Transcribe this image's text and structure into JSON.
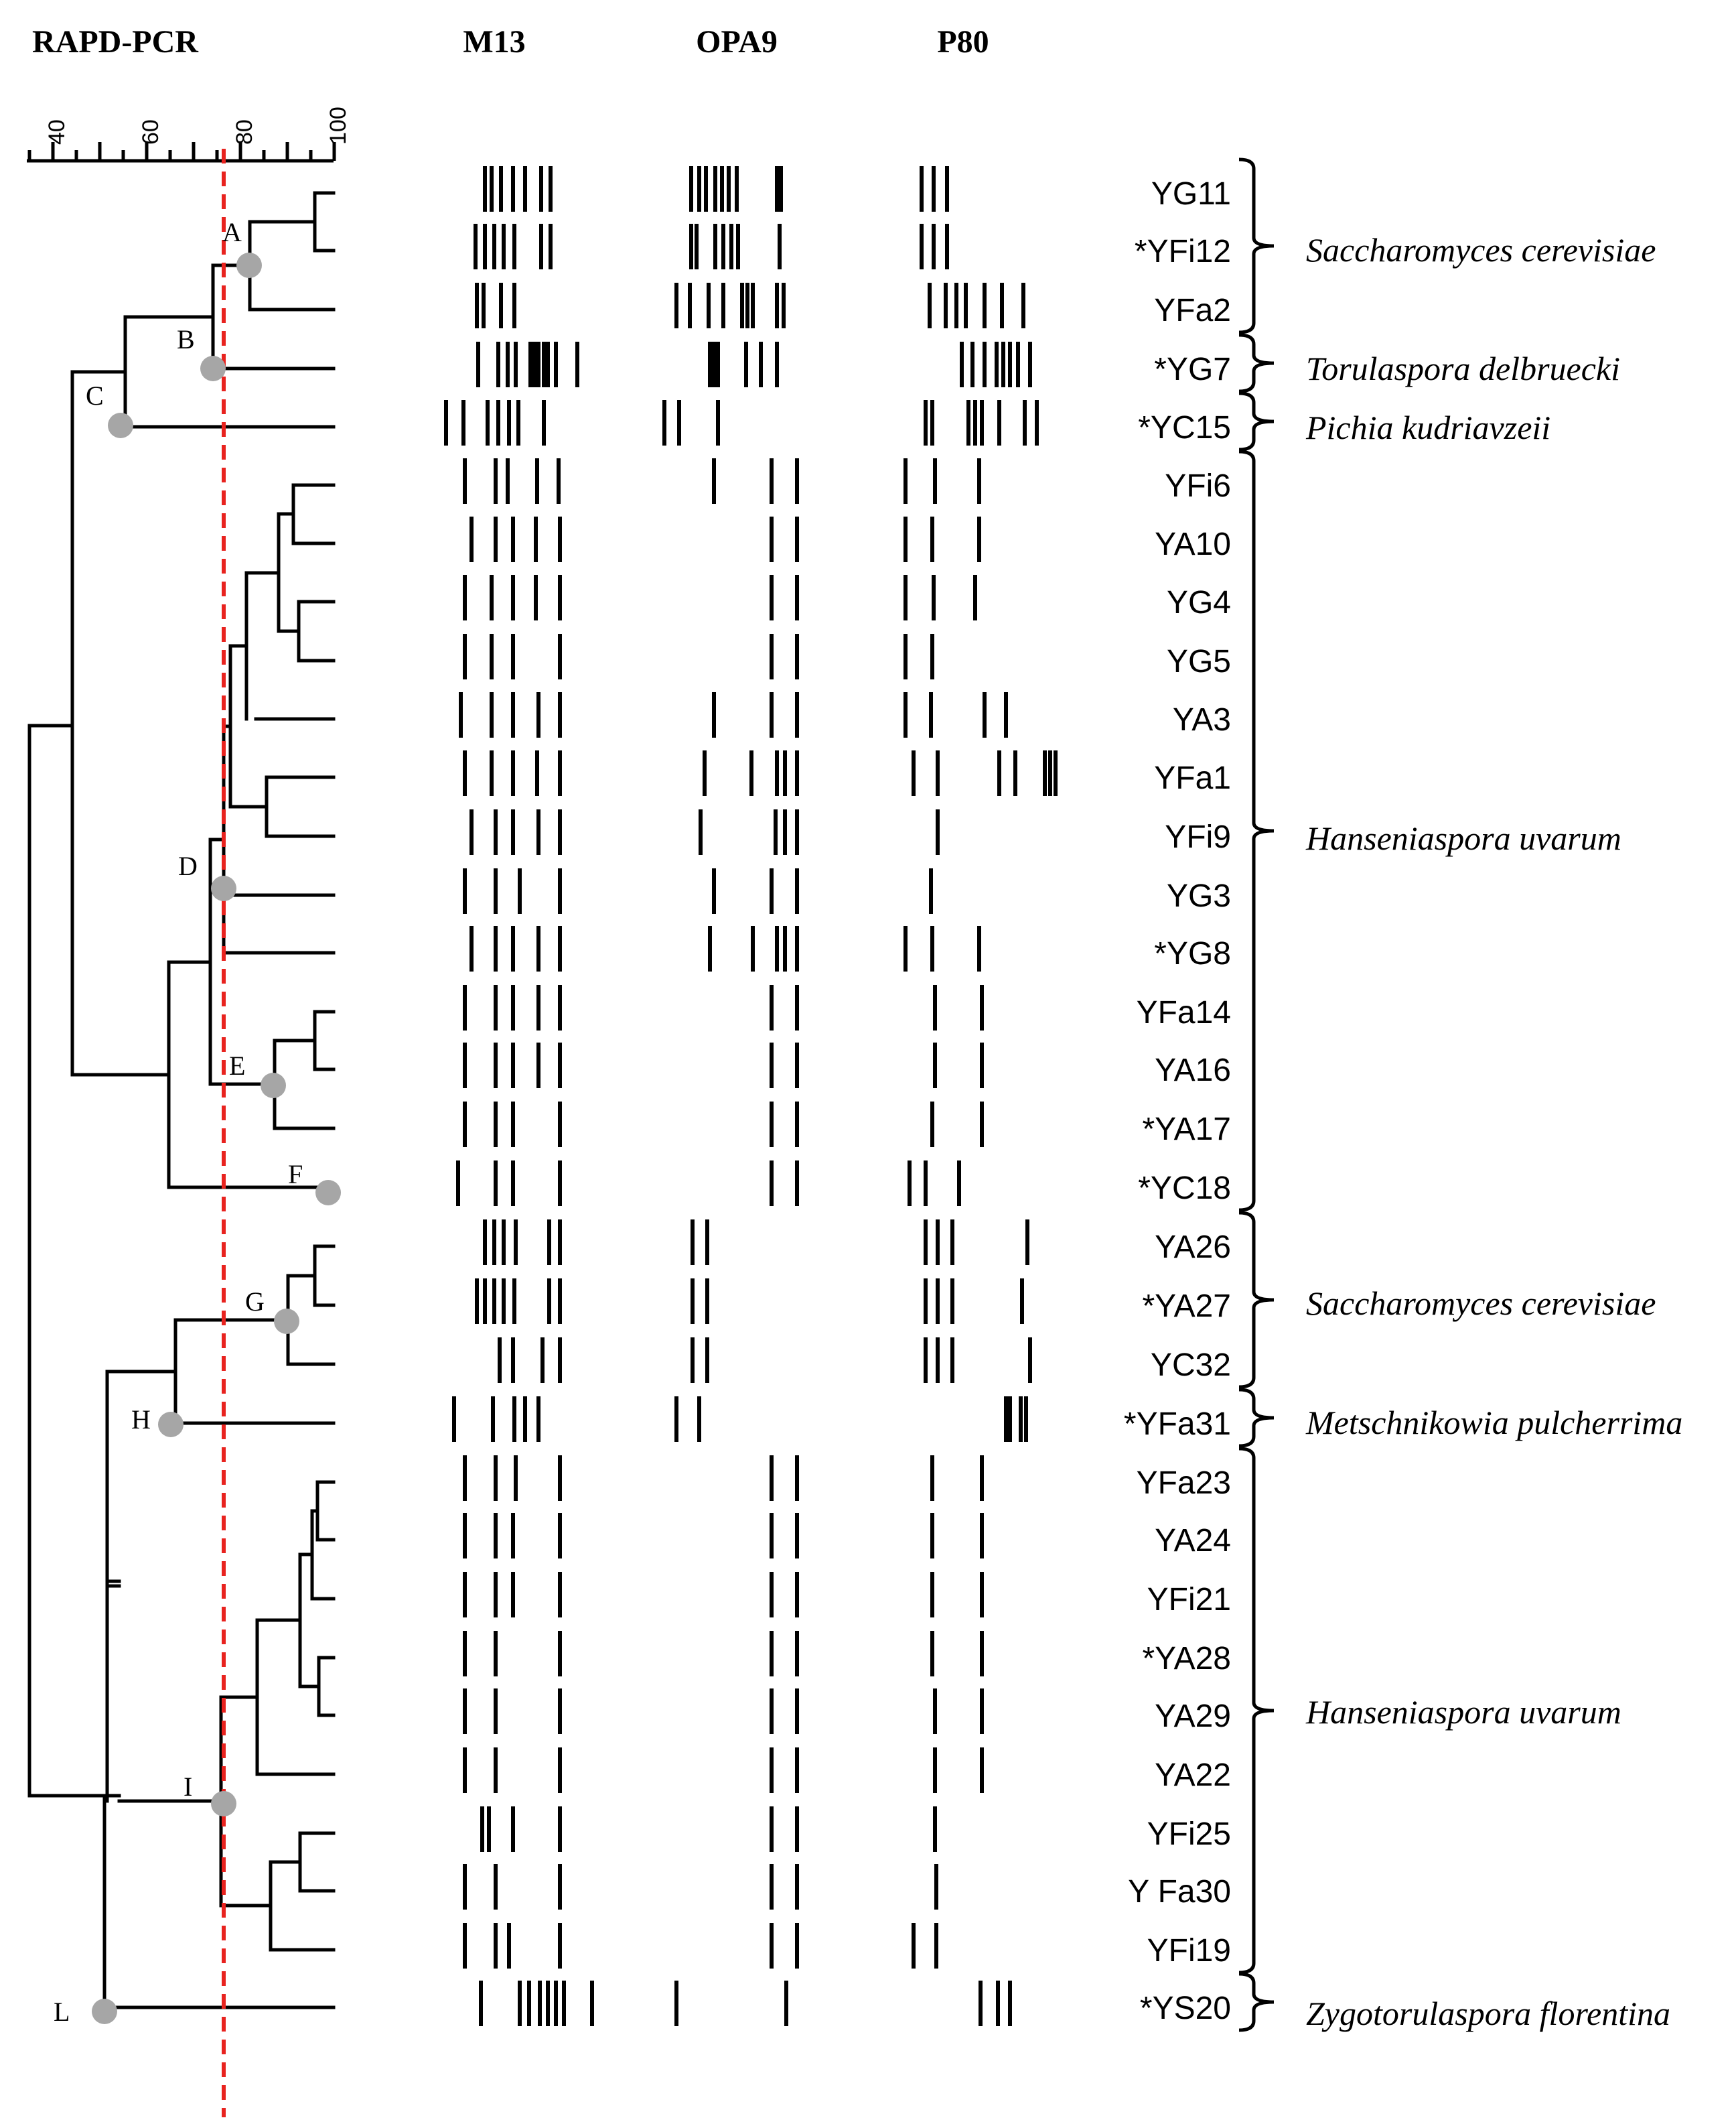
{
  "header": {
    "method": "RAPD-PCR"
  },
  "primers": [
    "M13",
    "OPA9",
    "P80"
  ],
  "scale": {
    "ticks": [
      "40",
      "60",
      "80",
      "100"
    ]
  },
  "cutoff_color": "#e8231f",
  "node_color": "#a6a6a6",
  "nodes": [
    "A",
    "B",
    "C",
    "D",
    "E",
    "F",
    "G",
    "H",
    "I",
    "L"
  ],
  "strains": [
    "YG11",
    "*YFi12",
    "YFa2",
    "*YG7",
    "*YC15",
    "YFi6",
    "YA10",
    "YG4",
    "YG5",
    "YA3",
    "YFa1",
    "YFi9",
    "YG3",
    "*YG8",
    "YFa14",
    "YA16",
    "*YA17",
    "*YC18",
    "YA26",
    "*YA27",
    "YC32",
    "*YFa31",
    "YFa23",
    "YA24",
    "YFi21",
    "*YA28",
    "YA29",
    "YA22",
    "YFi25",
    "Y Fa30",
    "YFi19",
    "*YS20"
  ],
  "species_groups": [
    {
      "name": "Saccharomyces cerevisiae"
    },
    {
      "name": "Torulaspora delbruecki"
    },
    {
      "name": "Pichia kudriavzeii"
    },
    {
      "name": "Hanseniaspora uvarum"
    },
    {
      "name": "Saccharomyces cerevisiae"
    },
    {
      "name": "Metschnikowia pulcherrima"
    },
    {
      "name": "Hanseniaspora uvarum"
    },
    {
      "name": "Zygotorulaspora florentina"
    }
  ]
}
